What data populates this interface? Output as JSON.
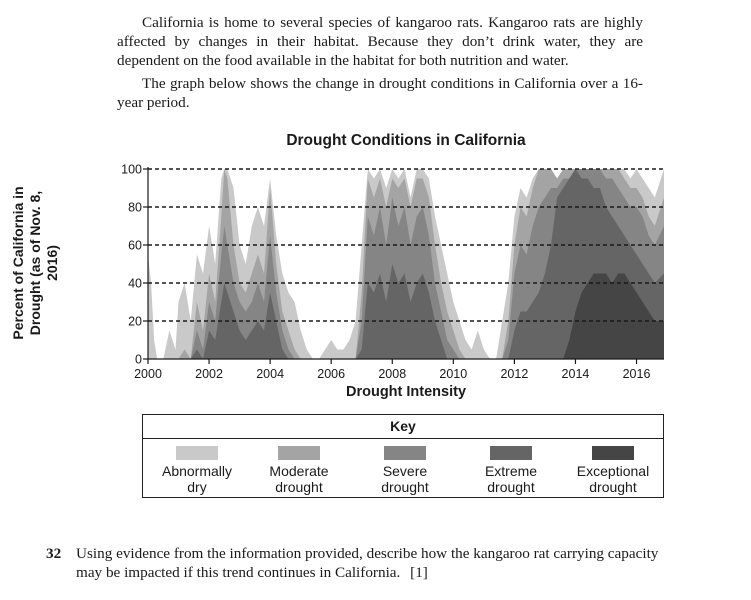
{
  "passage": {
    "para1": "California is home to several species of kangaroo rats. Kangaroo rats are highly affected by changes in their habitat. Because they don’t drink water, they are dependent on the food available in the habitat for both nutrition and water.",
    "para2": "The graph below shows the change in drought conditions in California over a 16-year period."
  },
  "chart_data": {
    "type": "area",
    "title": "Drought Conditions in California",
    "xlabel": "Drought Intensity",
    "ylabel_line1": "Percent of California in",
    "ylabel_line2": "Drought (as of Nov. 8, 2016)",
    "xlim": [
      2000,
      2016.9
    ],
    "ylim": [
      0,
      100
    ],
    "x_ticks": [
      "2000",
      "2002",
      "2004",
      "2006",
      "2008",
      "2010",
      "2012",
      "2014",
      "2016"
    ],
    "y_ticks": [
      "0",
      "20",
      "40",
      "60",
      "80",
      "100"
    ],
    "grid": "horizontal dashed",
    "x": [
      2000.0,
      2000.1,
      2000.2,
      2000.3,
      2000.5,
      2000.7,
      2000.9,
      2001.0,
      2001.2,
      2001.4,
      2001.6,
      2001.8,
      2002.0,
      2002.2,
      2002.4,
      2002.5,
      2002.6,
      2002.8,
      2003.0,
      2003.2,
      2003.4,
      2003.6,
      2003.8,
      2004.0,
      2004.2,
      2004.4,
      2004.6,
      2004.8,
      2005.0,
      2005.2,
      2005.4,
      2005.6,
      2005.8,
      2006.0,
      2006.2,
      2006.4,
      2006.6,
      2006.8,
      2007.0,
      2007.2,
      2007.4,
      2007.6,
      2007.8,
      2008.0,
      2008.2,
      2008.4,
      2008.6,
      2008.8,
      2009.0,
      2009.2,
      2009.4,
      2009.6,
      2009.8,
      2010.0,
      2010.2,
      2010.4,
      2010.6,
      2010.8,
      2011.0,
      2011.2,
      2011.4,
      2011.6,
      2011.8,
      2012.0,
      2012.2,
      2012.4,
      2012.6,
      2012.8,
      2013.0,
      2013.2,
      2013.4,
      2013.6,
      2013.8,
      2014.0,
      2014.2,
      2014.4,
      2014.6,
      2014.8,
      2015.0,
      2015.2,
      2015.4,
      2015.6,
      2015.8,
      2016.0,
      2016.2,
      2016.4,
      2016.6,
      2016.9
    ],
    "series": [
      {
        "name": "Abnormally dry",
        "color": "#c9c9c9",
        "values": [
          55,
          40,
          10,
          0,
          0,
          15,
          5,
          30,
          40,
          20,
          55,
          45,
          70,
          50,
          95,
          100,
          100,
          90,
          60,
          50,
          70,
          80,
          70,
          95,
          65,
          45,
          35,
          30,
          15,
          5,
          0,
          0,
          5,
          10,
          5,
          5,
          10,
          20,
          60,
          100,
          95,
          100,
          90,
          100,
          95,
          100,
          85,
          100,
          100,
          95,
          75,
          60,
          45,
          30,
          20,
          10,
          5,
          15,
          5,
          0,
          0,
          20,
          40,
          75,
          90,
          85,
          95,
          100,
          100,
          100,
          95,
          100,
          100,
          100,
          100,
          100,
          100,
          100,
          100,
          100,
          100,
          100,
          95,
          100,
          95,
          90,
          85,
          100
        ]
      },
      {
        "name": "Moderate drought",
        "color": "#a4a4a4",
        "values": [
          0,
          0,
          0,
          0,
          0,
          0,
          0,
          0,
          5,
          0,
          30,
          15,
          45,
          30,
          75,
          100,
          95,
          60,
          40,
          35,
          45,
          55,
          45,
          90,
          50,
          25,
          15,
          5,
          0,
          0,
          0,
          0,
          0,
          0,
          0,
          0,
          0,
          0,
          35,
          95,
          85,
          95,
          80,
          95,
          90,
          95,
          80,
          95,
          95,
          85,
          60,
          40,
          25,
          15,
          5,
          0,
          0,
          0,
          0,
          0,
          0,
          0,
          20,
          60,
          80,
          75,
          90,
          100,
          100,
          100,
          95,
          100,
          100,
          100,
          100,
          100,
          100,
          100,
          100,
          100,
          100,
          95,
          90,
          90,
          85,
          75,
          70,
          85
        ]
      },
      {
        "name": "Severe drought",
        "color": "#858585",
        "values": [
          0,
          0,
          0,
          0,
          0,
          0,
          0,
          0,
          0,
          0,
          15,
          5,
          30,
          20,
          55,
          70,
          60,
          40,
          30,
          25,
          30,
          40,
          30,
          65,
          35,
          15,
          5,
          0,
          0,
          0,
          0,
          0,
          0,
          0,
          0,
          0,
          0,
          0,
          20,
          75,
          65,
          80,
          60,
          85,
          70,
          80,
          60,
          75,
          80,
          65,
          40,
          25,
          10,
          5,
          0,
          0,
          0,
          0,
          0,
          0,
          0,
          0,
          10,
          45,
          60,
          55,
          70,
          80,
          85,
          90,
          90,
          95,
          95,
          100,
          100,
          100,
          100,
          100,
          95,
          95,
          90,
          85,
          80,
          80,
          75,
          65,
          60,
          70
        ]
      },
      {
        "name": "Extreme drought",
        "color": "#656565",
        "values": [
          0,
          0,
          0,
          0,
          0,
          0,
          0,
          0,
          0,
          0,
          5,
          0,
          15,
          10,
          30,
          40,
          35,
          25,
          15,
          10,
          15,
          20,
          15,
          35,
          20,
          5,
          0,
          0,
          0,
          0,
          0,
          0,
          0,
          0,
          0,
          0,
          0,
          0,
          5,
          40,
          35,
          45,
          30,
          50,
          40,
          45,
          30,
          40,
          45,
          35,
          20,
          10,
          0,
          0,
          0,
          0,
          0,
          0,
          0,
          0,
          0,
          0,
          0,
          15,
          25,
          25,
          30,
          35,
          45,
          60,
          85,
          90,
          95,
          100,
          95,
          95,
          90,
          90,
          80,
          75,
          70,
          65,
          60,
          55,
          50,
          45,
          40,
          45
        ]
      },
      {
        "name": "Exceptional drought",
        "color": "#454545",
        "values": [
          0,
          0,
          0,
          0,
          0,
          0,
          0,
          0,
          0,
          0,
          0,
          0,
          0,
          0,
          0,
          0,
          0,
          0,
          0,
          0,
          0,
          0,
          0,
          0,
          0,
          0,
          0,
          0,
          0,
          0,
          0,
          0,
          0,
          0,
          0,
          0,
          0,
          0,
          0,
          0,
          0,
          0,
          0,
          0,
          0,
          0,
          0,
          0,
          0,
          0,
          0,
          0,
          0,
          0,
          0,
          0,
          0,
          0,
          0,
          0,
          0,
          0,
          0,
          0,
          0,
          0,
          0,
          0,
          0,
          0,
          0,
          0,
          10,
          25,
          35,
          40,
          45,
          45,
          45,
          40,
          45,
          45,
          40,
          35,
          30,
          25,
          20,
          20
        ]
      }
    ],
    "legend": {
      "title": "Key",
      "position": "bottom",
      "entries": [
        {
          "line1": "Abnormally",
          "line2": "dry"
        },
        {
          "line1": "Moderate",
          "line2": "drought"
        },
        {
          "line1": "Severe",
          "line2": "drought"
        },
        {
          "line1": "Extreme",
          "line2": "drought"
        },
        {
          "line1": "Exceptional",
          "line2": "drought"
        }
      ]
    }
  },
  "question": {
    "number": "32",
    "line1": "Using evidence from the information provided, describe how the kangaroo rat carrying capacity",
    "line2": "may be impacted if this trend continues in California.",
    "points": "[1]"
  }
}
